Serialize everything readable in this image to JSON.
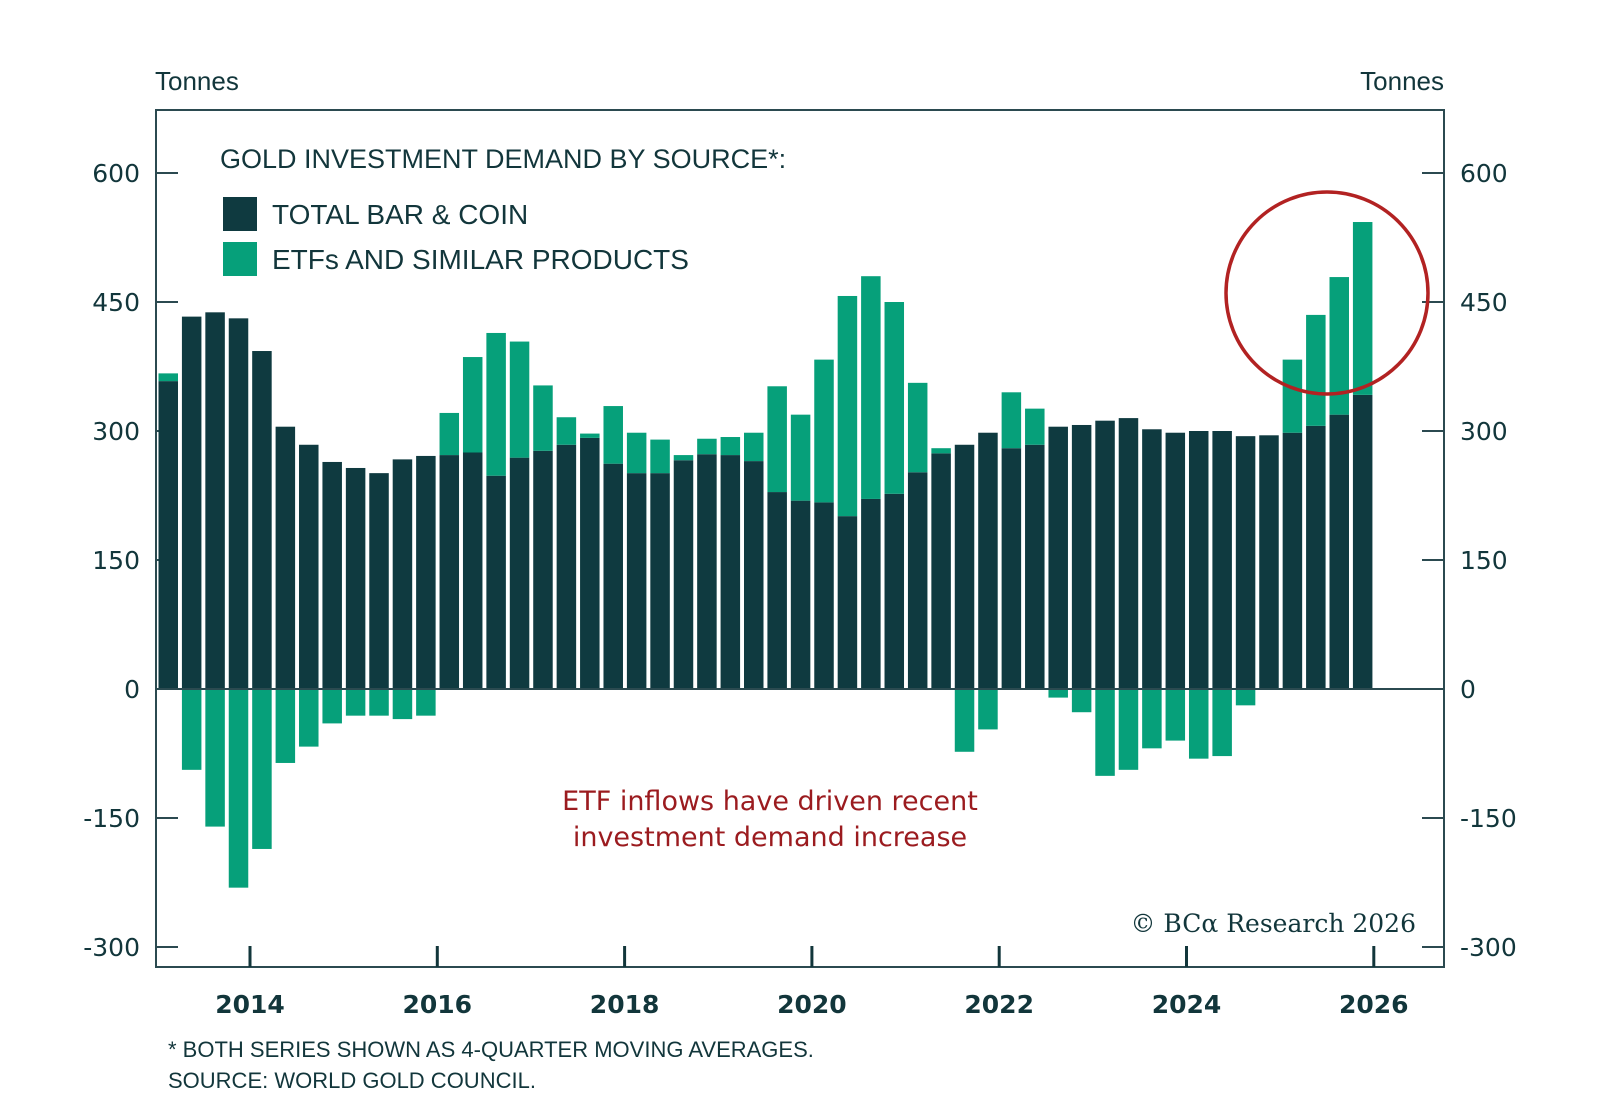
{
  "chart_data": {
    "type": "bar",
    "stacked": true,
    "title": "GOLD INVESTMENT DEMAND BY SOURCE*:",
    "ylabel_left": "Tonnes",
    "ylabel_right": "Tonnes",
    "xlabel": "",
    "ylim": [
      -300,
      600
    ],
    "yticks": [
      600,
      450,
      300,
      150,
      0,
      -150,
      -300
    ],
    "ytick_labels": [
      "600",
      "450",
      "300",
      "150",
      "0",
      "-150",
      "-300"
    ],
    "xtick_labels": [
      "2014",
      "2016",
      "2018",
      "2020",
      "2022",
      "2024",
      "2026"
    ],
    "x_range_quarters": "2013Q1-2025Q4 (quarterly, 52 bars)",
    "grid": false,
    "legend_position": "top-left",
    "legend": [
      {
        "name": "TOTAL BAR & COIN",
        "color": "#0f3a40"
      },
      {
        "name": "ETFs AND SIMILAR PRODUCTS",
        "color": "#06a07a"
      }
    ],
    "series": [
      {
        "name": "TOTAL BAR & COIN",
        "color": "#0f3a40",
        "values": [
          358,
          433,
          438,
          431,
          393,
          305,
          284,
          264,
          257,
          251,
          267,
          271,
          272,
          275,
          248,
          269,
          277,
          284,
          292,
          262,
          251,
          251,
          266,
          273,
          272,
          265,
          229,
          219,
          217,
          201,
          221,
          227,
          252,
          274,
          284,
          298,
          280,
          284,
          305,
          307,
          312,
          315,
          302,
          298,
          300,
          300,
          294,
          295,
          298,
          306,
          319,
          342
        ]
      },
      {
        "name": "ETFs AND SIMILAR PRODUCTS",
        "color": "#06a07a",
        "values": [
          9,
          -94,
          -160,
          -231,
          -186,
          -86,
          -67,
          -40,
          -31,
          -31,
          -35,
          -31,
          49,
          111,
          166,
          135,
          76,
          32,
          5,
          67,
          47,
          39,
          6,
          18,
          21,
          33,
          123,
          100,
          166,
          256,
          259,
          223,
          104,
          6,
          -73,
          -47,
          65,
          42,
          -10,
          -27,
          -101,
          -94,
          -69,
          -60,
          -81,
          -78,
          -19,
          0,
          85,
          129,
          160,
          201
        ]
      }
    ],
    "annotations": [
      {
        "text_line1": "ETF inflows have driven recent",
        "text_line2": "investment demand increase",
        "color": "#9b1b1f"
      },
      {
        "type": "circle",
        "highlight": "last four quarters (2025)",
        "color": "#b22222"
      }
    ],
    "footnote": "* BOTH SERIES SHOWN AS 4-QUARTER MOVING AVERAGES.",
    "source": "SOURCE: WORLD GOLD COUNCIL.",
    "credit": "© BCα Research 2026"
  }
}
